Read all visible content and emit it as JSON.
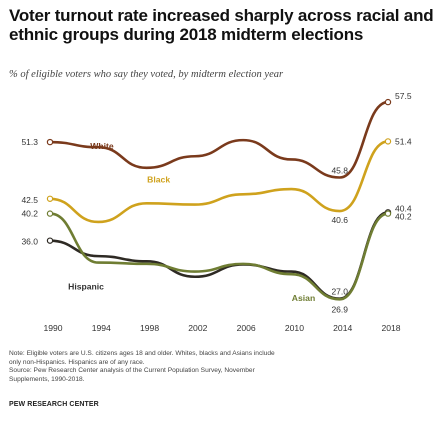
{
  "title": "Voter turnout rate increased sharply across racial and ethnic groups during 2018 midterm elections",
  "subtitle": "% of eligible voters who say they voted, by midterm election year",
  "note_lines": [
    "Note: Eligible voters are U.S. citizens ages 18 and older. Whites, blacks and Asians include",
    "only non-Hispanics. Hispanics are of any race.",
    "Source: Pew Research Center analysis of the Current Population Survey, November",
    "Supplements, 1990-2018."
  ],
  "credit": "PEW RESEARCH CENTER",
  "colors": {
    "white": "#7a3a1c",
    "black": "#cfa21d",
    "hispanic": "#2e2a24",
    "asian": "#6f7d33",
    "axis_text": "#333333"
  },
  "chart_data": {
    "type": "line",
    "title": "Voter turnout rate increased sharply across racial and ethnic groups during 2018 midterm elections",
    "subtitle": "% of eligible voters who say they voted, by midterm election year",
    "x": [
      1990,
      1994,
      1998,
      2002,
      2006,
      2010,
      2014,
      2018
    ],
    "x_ticks": [
      "1990",
      "1994",
      "1998",
      "2002",
      "2006",
      "2010",
      "2014",
      "2018"
    ],
    "ylim": [
      24,
      60
    ],
    "grid": false,
    "series": [
      {
        "name": "White",
        "color": "#7a3a1c",
        "values": [
          51.3,
          50.5,
          47.3,
          49.1,
          51.6,
          48.6,
          45.8,
          57.5
        ],
        "labels": {
          "start": "51.3",
          "low": "45.8",
          "end": "57.5"
        }
      },
      {
        "name": "Black",
        "color": "#cfa21d",
        "values": [
          42.5,
          38.9,
          41.8,
          41.6,
          43.2,
          44.0,
          40.6,
          51.4
        ],
        "labels": {
          "start": "42.5",
          "low": "40.6",
          "end": "51.4"
        }
      },
      {
        "name": "Hispanic",
        "color": "#2e2a24",
        "values": [
          36.0,
          33.6,
          32.8,
          30.4,
          32.3,
          31.2,
          27.0,
          40.4
        ],
        "labels": {
          "start": "36.0",
          "low": "27.0",
          "end": "40.4"
        }
      },
      {
        "name": "Asian",
        "color": "#6f7d33",
        "values": [
          40.2,
          32.6,
          32.4,
          31.2,
          32.4,
          30.8,
          26.9,
          40.2
        ],
        "labels": {
          "start": "40.2",
          "low": "26.9",
          "end": "40.2"
        }
      }
    ]
  }
}
